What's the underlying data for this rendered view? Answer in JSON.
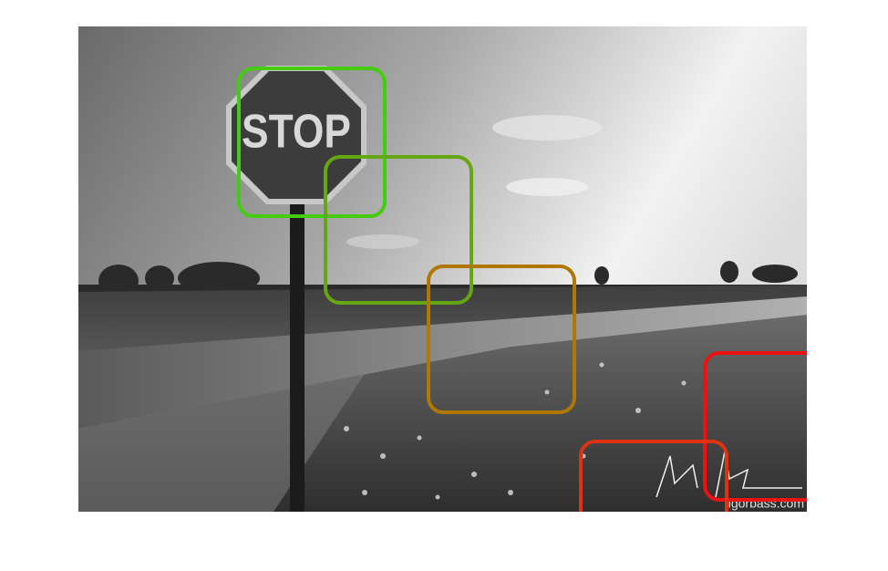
{
  "scene_text": {
    "sign": "STOP",
    "watermark": "igorbass.com"
  }
}
